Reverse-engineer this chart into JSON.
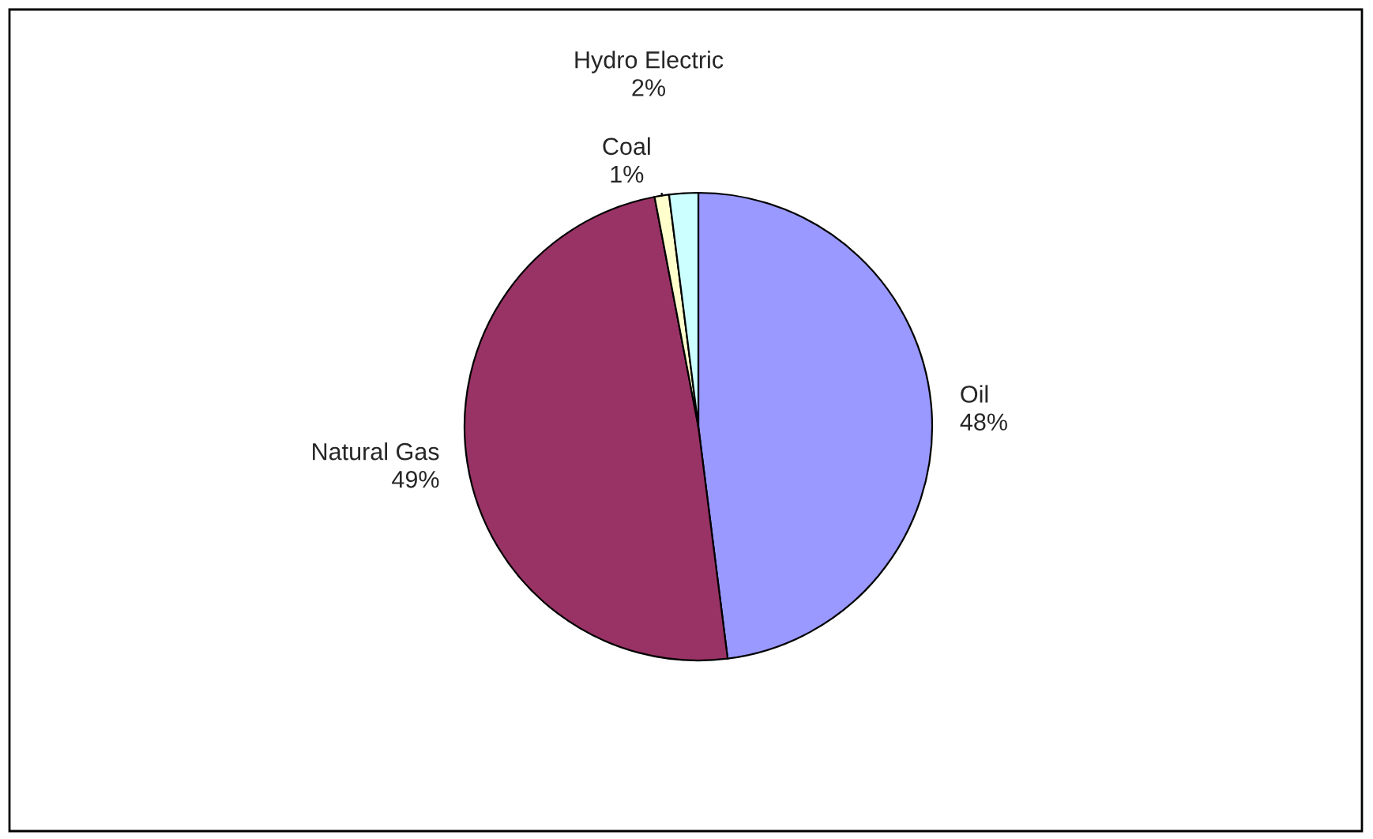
{
  "chart_data": {
    "type": "pie",
    "categories": [
      "Oil",
      "Natural Gas",
      "Coal",
      "Hydro Electric"
    ],
    "values": [
      48,
      49,
      1,
      2
    ],
    "colors": [
      "#9999ff",
      "#993366",
      "#ffffcc",
      "#ccffff"
    ],
    "value_labels": [
      "48%",
      "49%",
      "1%",
      "2%"
    ],
    "legend": false
  }
}
